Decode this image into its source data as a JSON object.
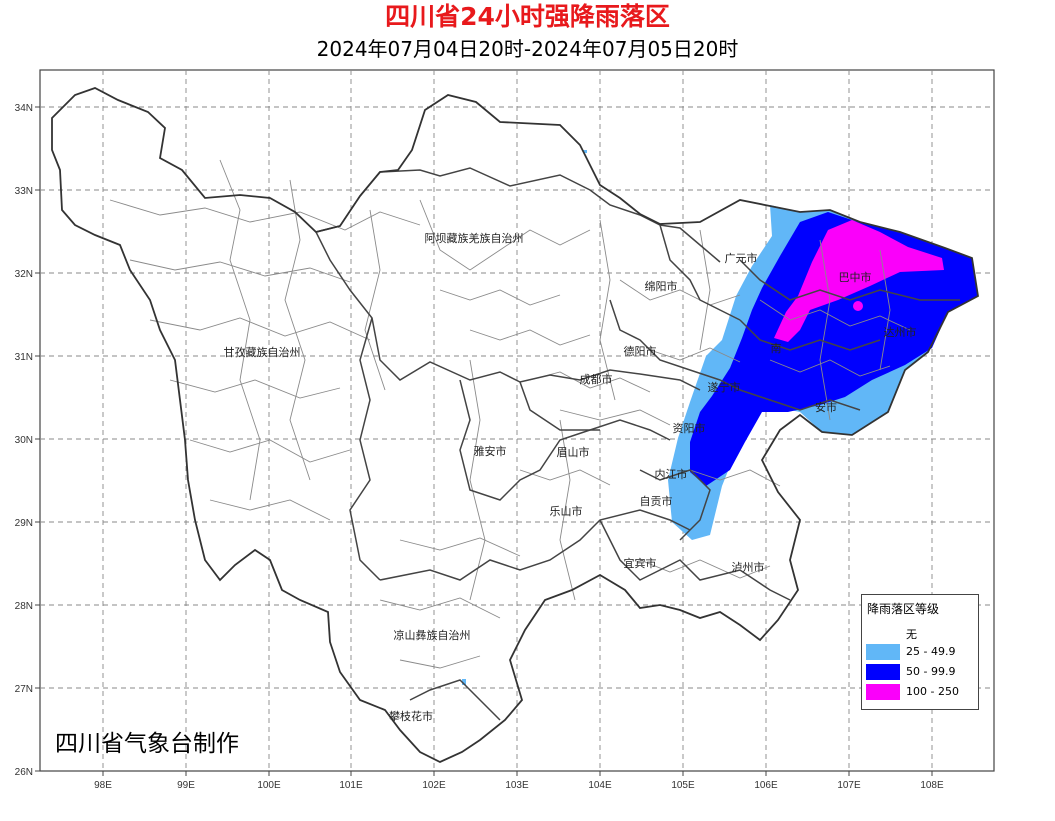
{
  "title": "四川省24小时强降雨落区",
  "subtitle": "2024年07月04日20时-2024年07月05日20时",
  "x_ticks": [
    "98E",
    "99E",
    "100E",
    "101E",
    "102E",
    "103E",
    "104E",
    "105E",
    "106E",
    "107E",
    "108E"
  ],
  "y_ticks": [
    "34N",
    "33N",
    "32N",
    "31N",
    "30N",
    "29N",
    "28N",
    "27N",
    "26N"
  ],
  "regions": {
    "guangyuan": "广元市",
    "bazhong": "巴中市",
    "mianyang": "绵阳市",
    "aba": "阿坝藏族羌族自治州",
    "ganzi": "甘孜藏族自治州",
    "deyang": "德阳市",
    "chengdu": "成都市",
    "suining": "遂宁市",
    "nanchong": "南",
    "dazhou": "达州市",
    "guangan": "安市",
    "ziyang": "资阳市",
    "yaan": "雅安市",
    "meishan": "眉山市",
    "neijiang": "内江市",
    "zigong": "自贡市",
    "leshan": "乐山市",
    "yibin": "宜宾市",
    "luzhou": "泸州市",
    "liangshan": "凉山彝族自治州",
    "panzhihua": "攀枝花市"
  },
  "credit": "四川省气象台制作",
  "legend": {
    "title": "降雨落区等级",
    "items": [
      {
        "label": "无",
        "color": "#ffffff"
      },
      {
        "label": "25 - 49.9",
        "color": "#61b7f7"
      },
      {
        "label": "50 - 99.9",
        "color": "#0000fe"
      },
      {
        "label": "100 - 250",
        "color": "#fa00fa"
      }
    ]
  },
  "colors": {
    "title": "#e8191c",
    "light": "#61b7f7",
    "blue": "#0000fe",
    "magenta": "#fa00fa",
    "grid": "#888888"
  }
}
